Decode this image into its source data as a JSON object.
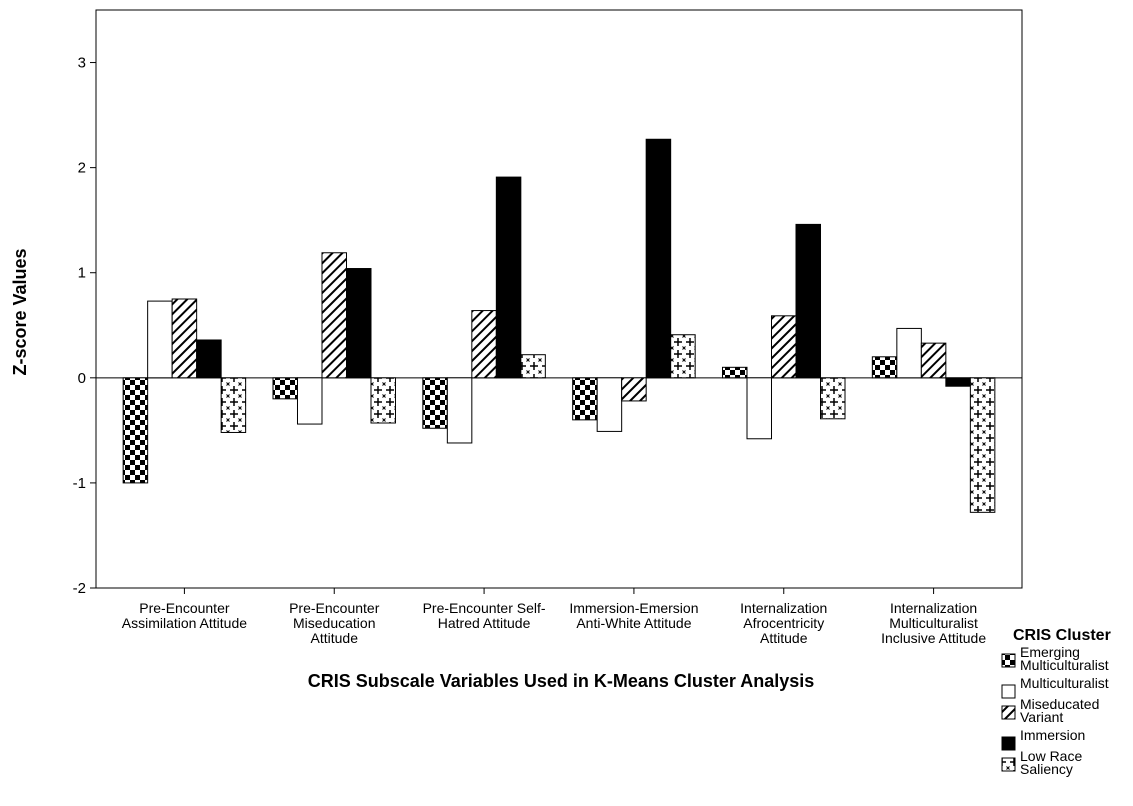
{
  "chart_data": {
    "type": "bar",
    "ylabel": "Z-score Values",
    "xlabel": "CRIS Subscale Variables Used in K-Means Cluster Analysis",
    "ylim": [
      -2,
      3.5
    ],
    "yticks": [
      -2,
      -1,
      0,
      1,
      2,
      3
    ],
    "grid": false,
    "legend_position": "bottom-right",
    "categories": [
      [
        "Pre-Encounter",
        "Assimilation Attitude"
      ],
      [
        "Pre-Encounter",
        "Miseducation",
        "Attitude"
      ],
      [
        "Pre-Encounter Self-",
        "Hatred Attitude"
      ],
      [
        "Immersion-Emersion",
        "Anti-White Attitude"
      ],
      [
        "Internalization",
        "Afrocentricity",
        "Attitude"
      ],
      [
        "Internalization",
        "Multiculturalist",
        "Inclusive Attitude"
      ]
    ],
    "legend": {
      "title": "CRIS Cluster"
    },
    "series": [
      {
        "name": [
          "Emerging",
          "Multiculturalist"
        ],
        "pattern": "checker",
        "values": [
          -1.0,
          -0.2,
          -0.48,
          -0.4,
          0.1,
          0.2
        ]
      },
      {
        "name": [
          "Multiculturalist"
        ],
        "pattern": "white",
        "values": [
          0.73,
          -0.44,
          -0.62,
          -0.51,
          -0.58,
          0.47
        ]
      },
      {
        "name": [
          "Miseducated",
          "Variant"
        ],
        "pattern": "diagonal",
        "values": [
          0.75,
          1.19,
          0.64,
          -0.22,
          0.59,
          0.33
        ]
      },
      {
        "name": [
          "Immersion"
        ],
        "pattern": "black",
        "values": [
          0.36,
          1.04,
          1.91,
          2.27,
          1.46,
          -0.08
        ]
      },
      {
        "name": [
          "Low Race",
          "Saliency"
        ],
        "pattern": "plus",
        "values": [
          -0.52,
          -0.43,
          0.22,
          0.41,
          -0.39,
          -1.28
        ]
      }
    ]
  }
}
